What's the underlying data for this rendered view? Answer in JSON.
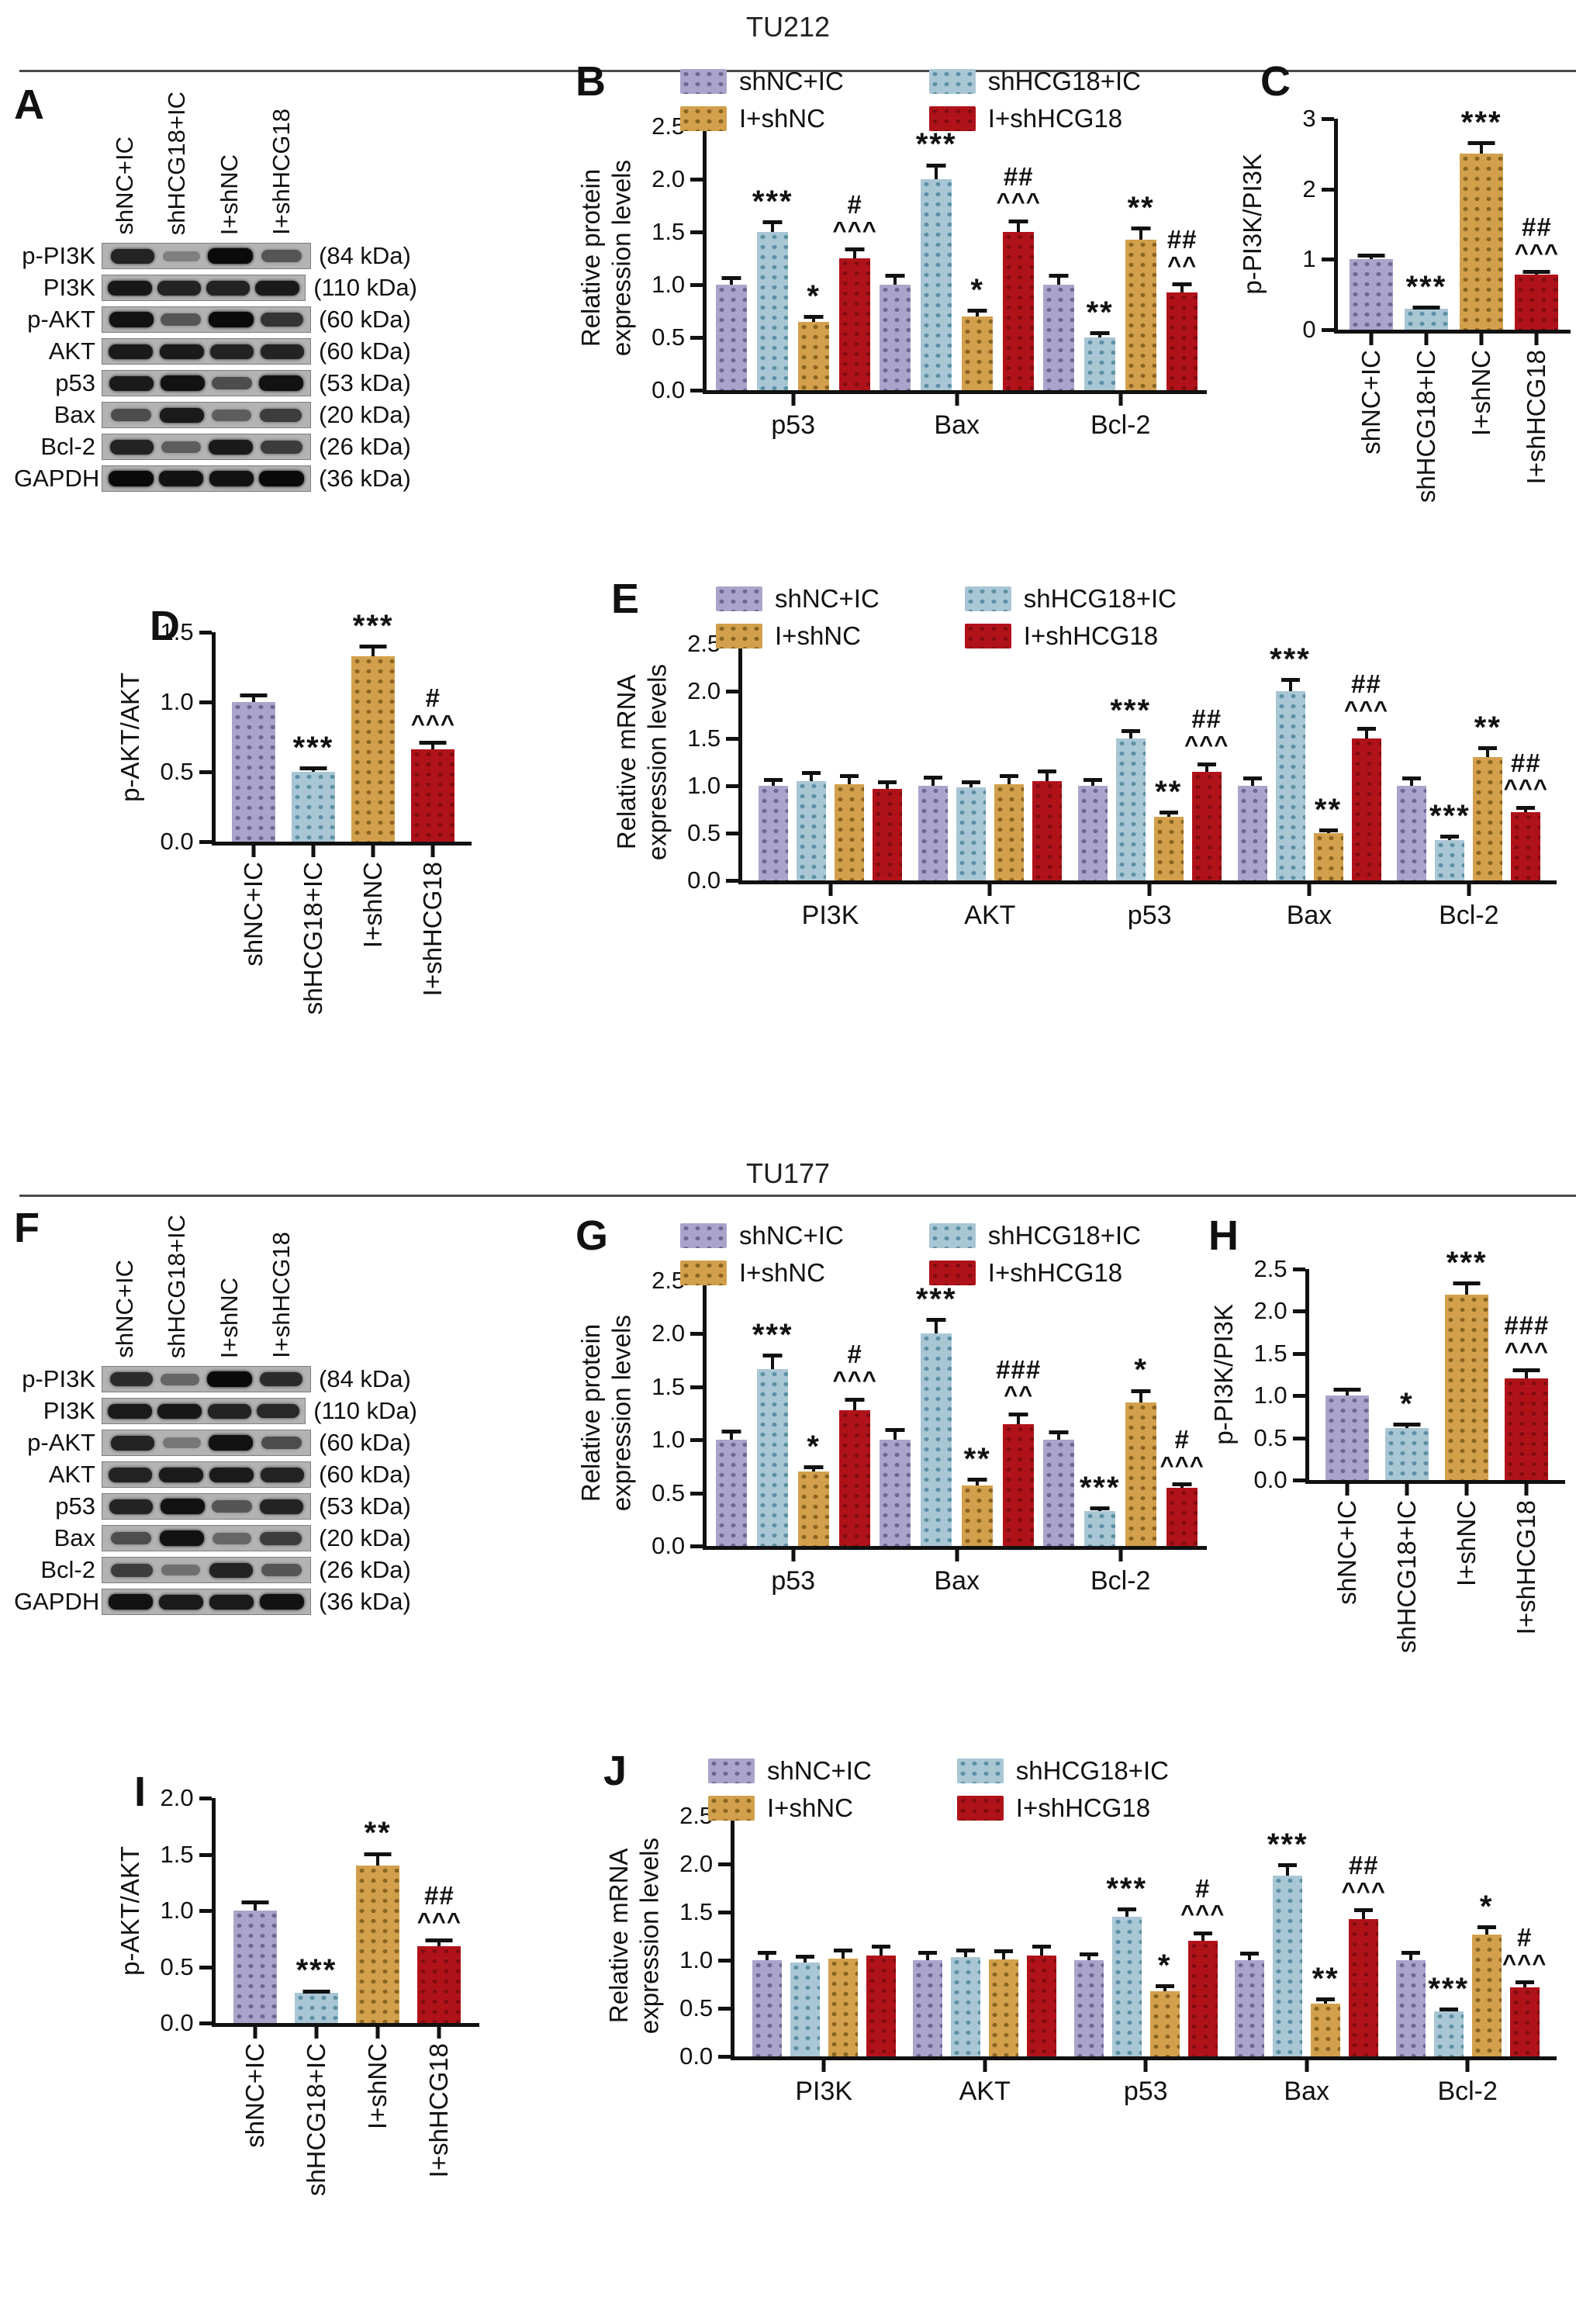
{
  "sections": [
    {
      "title": "TU212"
    },
    {
      "title": "TU177"
    }
  ],
  "groups": [
    {
      "label": "shNC+IC",
      "fill": "#aaa4cb",
      "dot": "#6e6794"
    },
    {
      "label": "shHCG18+IC",
      "fill": "#a9c6d4",
      "dot": "#5c8fa4"
    },
    {
      "label": "I+shNC",
      "fill": "#d2a04c",
      "dot": "#8a6420"
    },
    {
      "label": "I+shHCG18",
      "fill": "#b0121a",
      "dot": "#7f0c10"
    }
  ],
  "blots": [
    {
      "panel": "A",
      "cell_line": "TU212",
      "lanes": [
        "shNC+IC",
        "shHCG18+IC",
        "I+shNC",
        "I+shHCG18"
      ],
      "rows": [
        {
          "protein": "p-PI3K",
          "kda": "(84 kDa)",
          "bands": [
            0.85,
            0.3,
            1.0,
            0.55
          ]
        },
        {
          "protein": "PI3K",
          "kda": "(110 kDa)",
          "bands": [
            0.92,
            0.85,
            0.85,
            0.9
          ]
        },
        {
          "protein": "p-AKT",
          "kda": "(60 kDa)",
          "bands": [
            0.95,
            0.55,
            1.0,
            0.75
          ]
        },
        {
          "protein": "AKT",
          "kda": "(60 kDa)",
          "bands": [
            0.9,
            0.9,
            0.85,
            0.85
          ]
        },
        {
          "protein": "p53",
          "kda": "(53 kDa)",
          "bands": [
            0.9,
            0.95,
            0.6,
            0.95
          ]
        },
        {
          "protein": "Bax",
          "kda": "(20 kDa)",
          "bands": [
            0.6,
            0.9,
            0.5,
            0.7
          ]
        },
        {
          "protein": "Bcl-2",
          "kda": "(26 kDa)",
          "bands": [
            0.85,
            0.5,
            0.9,
            0.7
          ]
        },
        {
          "protein": "GAPDH",
          "kda": "(36 kDa)",
          "bands": [
            1.0,
            0.95,
            0.95,
            1.0
          ]
        }
      ]
    },
    {
      "panel": "F",
      "cell_line": "TU177",
      "lanes": [
        "shNC+IC",
        "shHCG18+IC",
        "I+shNC",
        "I+shHCG18"
      ],
      "rows": [
        {
          "protein": "p-PI3K",
          "kda": "(84 kDa)",
          "bands": [
            0.8,
            0.45,
            1.0,
            0.8
          ]
        },
        {
          "protein": "PI3K",
          "kda": "(110 kDa)",
          "bands": [
            0.9,
            0.92,
            0.85,
            0.82
          ]
        },
        {
          "protein": "p-AKT",
          "kda": "(60 kDa)",
          "bands": [
            0.85,
            0.35,
            0.95,
            0.6
          ]
        },
        {
          "protein": "AKT",
          "kda": "(60 kDa)",
          "bands": [
            0.85,
            0.9,
            0.9,
            0.85
          ]
        },
        {
          "protein": "p53",
          "kda": "(53 kDa)",
          "bands": [
            0.85,
            0.95,
            0.55,
            0.85
          ]
        },
        {
          "protein": "Bax",
          "kda": "(20 kDa)",
          "bands": [
            0.6,
            0.95,
            0.45,
            0.7
          ]
        },
        {
          "protein": "Bcl-2",
          "kda": "(26 kDa)",
          "bands": [
            0.7,
            0.4,
            0.85,
            0.55
          ]
        },
        {
          "protein": "GAPDH",
          "kda": "(36 kDa)",
          "bands": [
            0.95,
            0.9,
            0.9,
            0.95
          ]
        }
      ]
    }
  ],
  "chart_data": [
    {
      "panel": "B",
      "type": "bar",
      "variant": "grouped",
      "cell_line": "TU212",
      "legend": true,
      "ylabel_lines": [
        "Relative protein",
        "expression levels"
      ],
      "ymax": 2.5,
      "yticks": [
        "0.0",
        "0.5",
        "1.0",
        "1.5",
        "2.0",
        "2.5"
      ],
      "categories": [
        "p53",
        "Bax",
        "Bcl-2"
      ],
      "series": [
        "shNC+IC",
        "shHCG18+IC",
        "I+shNC",
        "I+shHCG18"
      ],
      "values": [
        [
          1.0,
          1.5,
          0.65,
          1.25
        ],
        [
          1.0,
          2.0,
          0.7,
          1.5
        ],
        [
          1.0,
          0.5,
          1.43,
          0.93
        ]
      ],
      "errors": [
        [
          0.08,
          0.11,
          0.06,
          0.1
        ],
        [
          0.1,
          0.15,
          0.07,
          0.12
        ],
        [
          0.1,
          0.06,
          0.12,
          0.09
        ]
      ],
      "annotations": [
        [
          [],
          [
            "***"
          ],
          [
            "*"
          ],
          [
            "#",
            "^^^"
          ]
        ],
        [
          [],
          [
            "***"
          ],
          [
            "*"
          ],
          [
            "##",
            "^^^"
          ]
        ],
        [
          [],
          [
            "**"
          ],
          [
            "**"
          ],
          [
            "##",
            "^^"
          ]
        ]
      ]
    },
    {
      "panel": "C",
      "type": "bar",
      "variant": "single",
      "cell_line": "TU212",
      "legend": false,
      "ylabel_lines": [
        "p-PI3K/PI3K"
      ],
      "ymax": 3,
      "yticks": [
        "0",
        "1",
        "2",
        "3"
      ],
      "categories": [
        "shNC+IC",
        "shHCG18+IC",
        "I+shNC",
        "I+shHCG18"
      ],
      "values": [
        1.0,
        0.3,
        2.5,
        0.78
      ],
      "errors": [
        0.08,
        0.04,
        0.18,
        0.07
      ],
      "annotations": [
        [],
        [
          "***"
        ],
        [
          "***"
        ],
        [
          "##",
          "^^^"
        ]
      ]
    },
    {
      "panel": "D",
      "type": "bar",
      "variant": "single",
      "cell_line": "TU212",
      "legend": false,
      "ylabel_lines": [
        "p-AKT/AKT"
      ],
      "ymax": 1.5,
      "yticks": [
        "0.0",
        "0.5",
        "1.0",
        "1.5"
      ],
      "categories": [
        "shNC+IC",
        "shHCG18+IC",
        "I+shNC",
        "I+shHCG18"
      ],
      "values": [
        1.0,
        0.5,
        1.33,
        0.66
      ],
      "errors": [
        0.06,
        0.04,
        0.08,
        0.06
      ],
      "annotations": [
        [],
        [
          "***"
        ],
        [
          "***"
        ],
        [
          "#",
          "^^^"
        ]
      ]
    },
    {
      "panel": "E",
      "type": "bar",
      "variant": "grouped",
      "cell_line": "TU212",
      "legend": true,
      "ylabel_lines": [
        "Relative mRNA",
        "expression levels"
      ],
      "ymax": 2.5,
      "yticks": [
        "0.0",
        "0.5",
        "1.0",
        "1.5",
        "2.0",
        "2.5"
      ],
      "categories": [
        "PI3K",
        "AKT",
        "p53",
        "Bax",
        "Bcl-2"
      ],
      "series": [
        "shNC+IC",
        "shHCG18+IC",
        "I+shNC",
        "I+shHCG18"
      ],
      "values": [
        [
          1.0,
          1.05,
          1.02,
          0.97
        ],
        [
          1.0,
          0.98,
          1.02,
          1.05
        ],
        [
          1.0,
          1.5,
          0.67,
          1.15
        ],
        [
          1.0,
          2.0,
          0.5,
          1.5
        ],
        [
          1.0,
          0.43,
          1.3,
          0.72
        ]
      ],
      "errors": [
        [
          0.08,
          0.11,
          0.1,
          0.09
        ],
        [
          0.11,
          0.08,
          0.1,
          0.12
        ],
        [
          0.08,
          0.1,
          0.07,
          0.1
        ],
        [
          0.1,
          0.14,
          0.05,
          0.12
        ],
        [
          0.1,
          0.05,
          0.12,
          0.07
        ]
      ],
      "annotations": [
        [
          [],
          [],
          [],
          []
        ],
        [
          [],
          [],
          [],
          []
        ],
        [
          [],
          [
            "***"
          ],
          [
            "**"
          ],
          [
            "##",
            "^^^"
          ]
        ],
        [
          [],
          [
            "***"
          ],
          [
            "**"
          ],
          [
            "##",
            "^^^"
          ]
        ],
        [
          [],
          [
            "***"
          ],
          [
            "**"
          ],
          [
            "##",
            "^^^"
          ]
        ]
      ]
    },
    {
      "panel": "G",
      "type": "bar",
      "variant": "grouped",
      "cell_line": "TU177",
      "legend": true,
      "ylabel_lines": [
        "Relative protein",
        "expression levels"
      ],
      "ymax": 2.5,
      "yticks": [
        "0.0",
        "0.5",
        "1.0",
        "1.5",
        "2.0",
        "2.5"
      ],
      "categories": [
        "p53",
        "Bax",
        "Bcl-2"
      ],
      "series": [
        "shNC+IC",
        "shHCG18+IC",
        "I+shNC",
        "I+shHCG18"
      ],
      "values": [
        [
          1.0,
          1.67,
          0.7,
          1.28
        ],
        [
          1.0,
          2.0,
          0.57,
          1.15
        ],
        [
          1.0,
          0.33,
          1.35,
          0.55
        ]
      ],
      "errors": [
        [
          0.1,
          0.14,
          0.06,
          0.12
        ],
        [
          0.11,
          0.15,
          0.07,
          0.11
        ],
        [
          0.09,
          0.04,
          0.13,
          0.05
        ]
      ],
      "annotations": [
        [
          [],
          [
            "***"
          ],
          [
            "*"
          ],
          [
            "#",
            "^^^"
          ]
        ],
        [
          [],
          [
            "***"
          ],
          [
            "**"
          ],
          [
            "###",
            "^^"
          ]
        ],
        [
          [],
          [
            "***"
          ],
          [
            "*"
          ],
          [
            "#",
            "^^^"
          ]
        ]
      ]
    },
    {
      "panel": "H",
      "type": "bar",
      "variant": "single",
      "cell_line": "TU177",
      "legend": false,
      "ylabel_lines": [
        "p-PI3K/PI3K"
      ],
      "ymax": 2.5,
      "yticks": [
        "0.0",
        "0.5",
        "1.0",
        "1.5",
        "2.0",
        "2.5"
      ],
      "categories": [
        "shNC+IC",
        "shHCG18+IC",
        "I+shNC",
        "I+shHCG18"
      ],
      "values": [
        1.0,
        0.62,
        2.2,
        1.2
      ],
      "errors": [
        0.09,
        0.06,
        0.15,
        0.12
      ],
      "annotations": [
        [],
        [
          "*"
        ],
        [
          "***"
        ],
        [
          "###",
          "^^^"
        ]
      ]
    },
    {
      "panel": "I",
      "type": "bar",
      "variant": "single",
      "cell_line": "TU177",
      "legend": false,
      "ylabel_lines": [
        "p-AKT/AKT"
      ],
      "ymax": 2.0,
      "yticks": [
        "0.0",
        "0.5",
        "1.0",
        "1.5",
        "2.0"
      ],
      "categories": [
        "shNC+IC",
        "shHCG18+IC",
        "I+shNC",
        "I+shHCG18"
      ],
      "values": [
        1.0,
        0.27,
        1.4,
        0.68
      ],
      "errors": [
        0.09,
        0.03,
        0.12,
        0.07
      ],
      "annotations": [
        [],
        [
          "***"
        ],
        [
          "**"
        ],
        [
          "##",
          "^^^"
        ]
      ]
    },
    {
      "panel": "J",
      "type": "bar",
      "variant": "grouped",
      "cell_line": "TU177",
      "legend": true,
      "ylabel_lines": [
        "Relative mRNA",
        "expression levels"
      ],
      "ymax": 2.5,
      "yticks": [
        "0.0",
        "0.5",
        "1.0",
        "1.5",
        "2.0",
        "2.5"
      ],
      "categories": [
        "PI3K",
        "AKT",
        "p53",
        "Bax",
        "Bcl-2"
      ],
      "series": [
        "shNC+IC",
        "shHCG18+IC",
        "I+shNC",
        "I+shHCG18"
      ],
      "values": [
        [
          1.0,
          0.98,
          1.02,
          1.05
        ],
        [
          1.0,
          1.03,
          1.01,
          1.05
        ],
        [
          1.0,
          1.45,
          0.68,
          1.2
        ],
        [
          1.0,
          1.88,
          0.55,
          1.43
        ],
        [
          1.0,
          0.47,
          1.27,
          0.72
        ]
      ],
      "errors": [
        [
          0.1,
          0.08,
          0.1,
          0.11
        ],
        [
          0.1,
          0.09,
          0.1,
          0.11
        ],
        [
          0.08,
          0.1,
          0.07,
          0.1
        ],
        [
          0.09,
          0.13,
          0.06,
          0.11
        ],
        [
          0.1,
          0.04,
          0.09,
          0.07
        ]
      ],
      "annotations": [
        [
          [],
          [],
          [],
          []
        ],
        [
          [],
          [],
          [],
          []
        ],
        [
          [],
          [
            "***"
          ],
          [
            "*"
          ],
          [
            "#",
            "^^^"
          ]
        ],
        [
          [],
          [
            "***"
          ],
          [
            "**"
          ],
          [
            "##",
            "^^^"
          ]
        ],
        [
          [],
          [
            "***"
          ],
          [
            "*"
          ],
          [
            "#",
            "^^^"
          ]
        ]
      ]
    }
  ]
}
